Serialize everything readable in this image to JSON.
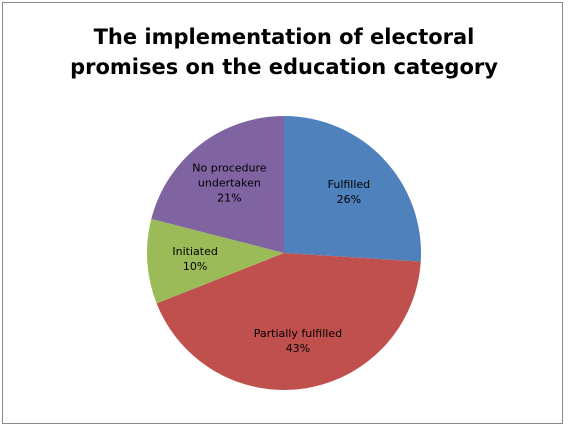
{
  "chart_data": {
    "type": "pie",
    "title": "The implementation of electoral promises on the education category",
    "categories": [
      "Fulfilled",
      "Partially fulfilled",
      "Initiated",
      "No procedure undertaken"
    ],
    "values": [
      26,
      43,
      10,
      21
    ],
    "value_labels": [
      "26%",
      "43%",
      "10%",
      "21%"
    ],
    "colors": [
      "#4f81bd",
      "#c0504d",
      "#9bbb59",
      "#8064a2"
    ]
  }
}
